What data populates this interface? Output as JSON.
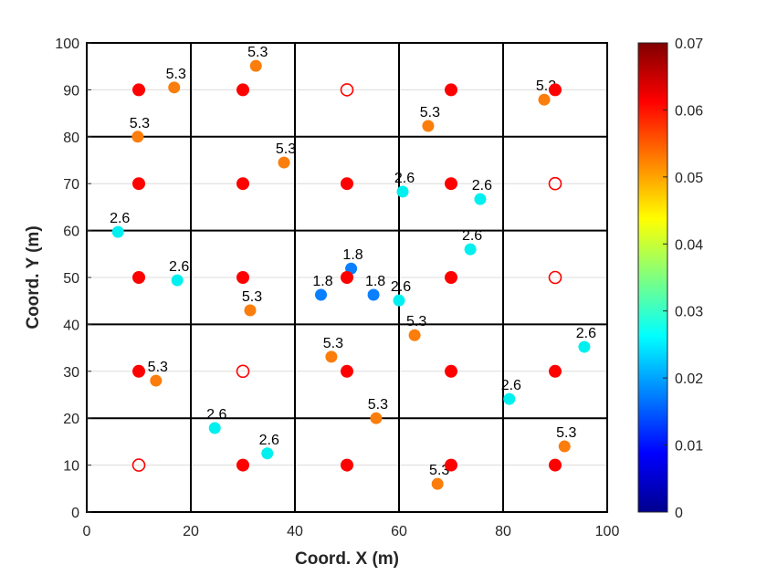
{
  "chart_data": {
    "type": "scatter",
    "title": "",
    "xlabel": "Coord. X (m)",
    "ylabel": "Coord. Y (m)",
    "xlim": [
      0,
      100
    ],
    "ylim": [
      0,
      100
    ],
    "xticks": [
      "0",
      "20",
      "40",
      "60",
      "80",
      "100"
    ],
    "xtick_values": [
      0,
      20,
      40,
      60,
      80,
      100
    ],
    "yticks": [
      "0",
      "10",
      "20",
      "30",
      "40",
      "50",
      "60",
      "70",
      "80",
      "90",
      "100"
    ],
    "ytick_values": [
      0,
      10,
      20,
      30,
      40,
      50,
      60,
      70,
      80,
      90,
      100
    ],
    "grid": "horizontal light gridlines every 10; bold cell boundaries every 20 on both axes",
    "cell_boundaries": [
      20,
      40,
      60,
      80
    ],
    "colorbar": {
      "location": "right",
      "colormap": "jet",
      "clim": [
        0,
        0.07
      ],
      "ticks": [
        "0",
        "0.01",
        "0.02",
        "0.03",
        "0.04",
        "0.05",
        "0.06",
        "0.07"
      ],
      "tick_values": [
        0,
        0.01,
        0.02,
        0.03,
        0.04,
        0.05,
        0.06,
        0.07
      ]
    },
    "colors": {
      "node_red": "#ff0000",
      "label_5_3": "#fb7d0b",
      "label_2_6": "#00f0f0",
      "label_1_8": "#0a80ff"
    },
    "series": [
      {
        "name": "labeled points",
        "points": [
          {
            "x": 16.8,
            "y": 90.5,
            "label": "5.3",
            "group": "label_5_3"
          },
          {
            "x": 32.5,
            "y": 95.1,
            "label": "5.3",
            "group": "label_5_3"
          },
          {
            "x": 9.8,
            "y": 80.0,
            "label": "5.3",
            "group": "label_5_3"
          },
          {
            "x": 37.9,
            "y": 74.5,
            "label": "5.3",
            "group": "label_5_3"
          },
          {
            "x": 65.6,
            "y": 82.3,
            "label": "5.3",
            "group": "label_5_3"
          },
          {
            "x": 87.9,
            "y": 87.9,
            "label": "5.3",
            "group": "label_5_3"
          },
          {
            "x": 31.4,
            "y": 43.0,
            "label": "5.3",
            "group": "label_5_3"
          },
          {
            "x": 63.0,
            "y": 37.7,
            "label": "5.3",
            "group": "label_5_3"
          },
          {
            "x": 13.3,
            "y": 28.0,
            "label": "5.3",
            "group": "label_5_3"
          },
          {
            "x": 47.0,
            "y": 33.1,
            "label": "5.3",
            "group": "label_5_3"
          },
          {
            "x": 55.6,
            "y": 20.0,
            "label": "5.3",
            "group": "label_5_3"
          },
          {
            "x": 67.4,
            "y": 6.0,
            "label": "5.3",
            "group": "label_5_3"
          },
          {
            "x": 91.8,
            "y": 14.0,
            "label": "5.3",
            "group": "label_5_3"
          },
          {
            "x": 60.7,
            "y": 68.3,
            "label": "2.6",
            "group": "label_2_6"
          },
          {
            "x": 75.6,
            "y": 66.7,
            "label": "2.6",
            "group": "label_2_6"
          },
          {
            "x": 6.0,
            "y": 59.7,
            "label": "2.6",
            "group": "label_2_6"
          },
          {
            "x": 17.4,
            "y": 49.4,
            "label": "2.6",
            "group": "label_2_6"
          },
          {
            "x": 73.7,
            "y": 56.0,
            "label": "2.6",
            "group": "label_2_6"
          },
          {
            "x": 60.0,
            "y": 45.1,
            "label": "2.6",
            "group": "label_2_6"
          },
          {
            "x": 95.6,
            "y": 35.2,
            "label": "2.6",
            "group": "label_2_6"
          },
          {
            "x": 81.2,
            "y": 24.1,
            "label": "2.6",
            "group": "label_2_6"
          },
          {
            "x": 24.6,
            "y": 17.9,
            "label": "2.6",
            "group": "label_2_6"
          },
          {
            "x": 34.7,
            "y": 12.5,
            "label": "2.6",
            "group": "label_2_6"
          },
          {
            "x": 50.8,
            "y": 51.9,
            "label": "1.8",
            "group": "label_1_8"
          },
          {
            "x": 45.0,
            "y": 46.3,
            "label": "1.8",
            "group": "label_1_8"
          },
          {
            "x": 55.1,
            "y": 46.3,
            "label": "1.8",
            "group": "label_1_8"
          }
        ]
      },
      {
        "name": "filled nodes",
        "marker": "filled-circle",
        "color": "#ff0000",
        "points": [
          {
            "x": 10,
            "y": 90
          },
          {
            "x": 30,
            "y": 90
          },
          {
            "x": 70,
            "y": 90
          },
          {
            "x": 90,
            "y": 90
          },
          {
            "x": 10,
            "y": 70
          },
          {
            "x": 30,
            "y": 70
          },
          {
            "x": 50,
            "y": 70
          },
          {
            "x": 70,
            "y": 70
          },
          {
            "x": 10,
            "y": 50
          },
          {
            "x": 30,
            "y": 50
          },
          {
            "x": 50,
            "y": 50
          },
          {
            "x": 70,
            "y": 50
          },
          {
            "x": 10,
            "y": 30
          },
          {
            "x": 50,
            "y": 30
          },
          {
            "x": 70,
            "y": 30
          },
          {
            "x": 90,
            "y": 30
          },
          {
            "x": 30,
            "y": 10
          },
          {
            "x": 50,
            "y": 10
          },
          {
            "x": 70,
            "y": 10
          },
          {
            "x": 90,
            "y": 10
          }
        ]
      },
      {
        "name": "hollow nodes",
        "marker": "open-circle",
        "color": "#ff0000",
        "points": [
          {
            "x": 50,
            "y": 90
          },
          {
            "x": 90,
            "y": 70
          },
          {
            "x": 90,
            "y": 50
          },
          {
            "x": 30,
            "y": 30
          },
          {
            "x": 10,
            "y": 10
          }
        ]
      }
    ]
  }
}
